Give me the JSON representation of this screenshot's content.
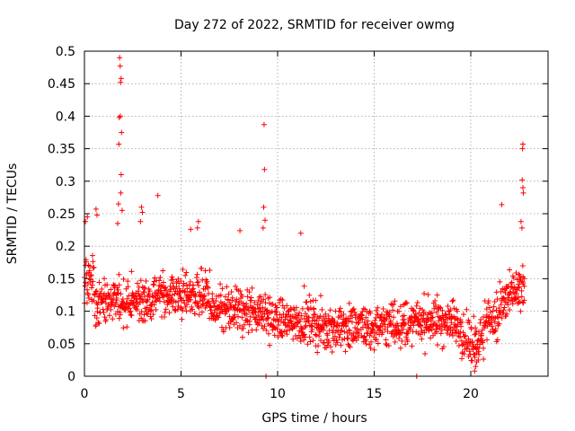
{
  "chart_data": {
    "type": "scatter",
    "title": "Day 272 of 2022, SRMTID for receiver owmg",
    "xlabel": "GPS time / hours",
    "ylabel": "SRMTID / TECUs",
    "xlim": [
      0,
      24
    ],
    "ylim": [
      0,
      0.5
    ],
    "xticks": [
      0,
      5,
      10,
      15,
      20
    ],
    "xtick_labels": [
      "0",
      "5",
      "10",
      "15",
      "20"
    ],
    "yticks": [
      0,
      0.05,
      0.1,
      0.15,
      0.2,
      0.25,
      0.3,
      0.35,
      0.4,
      0.45,
      0.5
    ],
    "ytick_labels": [
      "0",
      "0.05",
      "0.1",
      "0.15",
      "0.2",
      "0.25",
      "0.3",
      "0.35",
      "0.4",
      "0.45",
      "0.5"
    ],
    "grid": true,
    "marker": "+",
    "color": "#ff0000",
    "points": [
      {
        "x": 1.82,
        "y": 0.49
      },
      {
        "x": 1.85,
        "y": 0.477
      },
      {
        "x": 1.9,
        "y": 0.458
      },
      {
        "x": 1.87,
        "y": 0.452
      },
      {
        "x": 1.86,
        "y": 0.4
      },
      {
        "x": 1.8,
        "y": 0.398
      },
      {
        "x": 1.92,
        "y": 0.375
      },
      {
        "x": 1.78,
        "y": 0.357
      },
      {
        "x": 1.9,
        "y": 0.31
      },
      {
        "x": 1.88,
        "y": 0.282
      },
      {
        "x": 1.76,
        "y": 0.265
      },
      {
        "x": 1.95,
        "y": 0.255
      },
      {
        "x": 1.72,
        "y": 0.235
      },
      {
        "x": 9.3,
        "y": 0.387
      },
      {
        "x": 9.32,
        "y": 0.318
      },
      {
        "x": 9.28,
        "y": 0.26
      },
      {
        "x": 9.35,
        "y": 0.24
      },
      {
        "x": 9.25,
        "y": 0.228
      },
      {
        "x": 22.7,
        "y": 0.357
      },
      {
        "x": 22.68,
        "y": 0.35
      },
      {
        "x": 22.66,
        "y": 0.302
      },
      {
        "x": 22.7,
        "y": 0.29
      },
      {
        "x": 22.72,
        "y": 0.282
      },
      {
        "x": 22.6,
        "y": 0.238
      },
      {
        "x": 22.65,
        "y": 0.228
      },
      {
        "x": 21.6,
        "y": 0.264
      },
      {
        "x": 3.8,
        "y": 0.278
      },
      {
        "x": 2.95,
        "y": 0.26
      },
      {
        "x": 3.0,
        "y": 0.252
      },
      {
        "x": 2.9,
        "y": 0.238
      },
      {
        "x": 0.6,
        "y": 0.257
      },
      {
        "x": 0.65,
        "y": 0.248
      },
      {
        "x": 0.15,
        "y": 0.245
      },
      {
        "x": 0.05,
        "y": 0.238
      },
      {
        "x": 5.9,
        "y": 0.238
      },
      {
        "x": 5.85,
        "y": 0.228
      },
      {
        "x": 5.5,
        "y": 0.226
      },
      {
        "x": 8.05,
        "y": 0.224
      },
      {
        "x": 11.2,
        "y": 0.22
      },
      {
        "x": 9.4,
        "y": 0
      },
      {
        "x": 17.2,
        "y": 0
      },
      {
        "x": 20.2,
        "y": 0.008
      },
      {
        "x": 20.25,
        "y": 0.015
      },
      {
        "x": 20.3,
        "y": 0.022
      }
    ],
    "series_seed": 272
  }
}
